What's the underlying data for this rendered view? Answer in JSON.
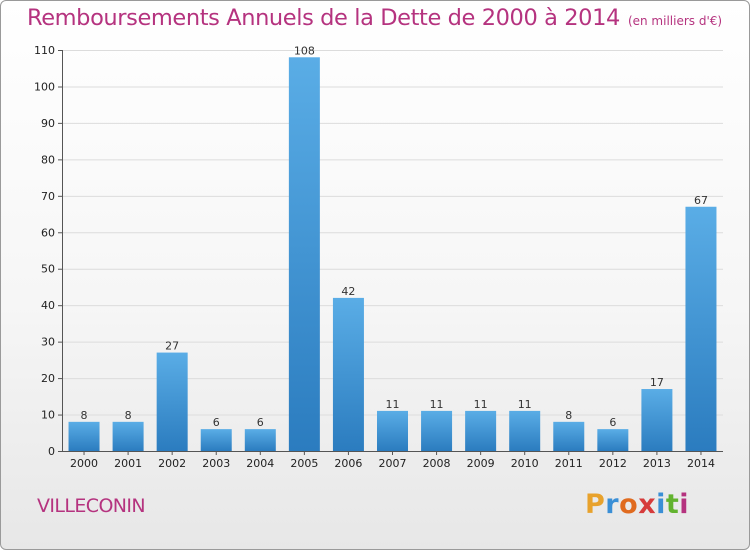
{
  "title": "Remboursements Annuels de la Dette de 2000 à 2014",
  "unit": "(en milliers d'€)",
  "commune": "VILLECONIN",
  "logo": {
    "text": "Proxiti",
    "colors": [
      "#e8a22c",
      "#3a8fd6",
      "#e06b1f",
      "#d63b3b",
      "#3a8fd6",
      "#62b32f",
      "#b5337f"
    ]
  },
  "colors": {
    "accent": "#b5337f",
    "bar_light": "#5aade6",
    "bar_dark": "#2b7cbf"
  },
  "chart_data": {
    "type": "bar",
    "categories": [
      "2000",
      "2001",
      "2002",
      "2003",
      "2004",
      "2005",
      "2006",
      "2007",
      "2008",
      "2009",
      "2010",
      "2011",
      "2012",
      "2013",
      "2014"
    ],
    "values": [
      8,
      8,
      27,
      6,
      6,
      108,
      42,
      11,
      11,
      11,
      11,
      8,
      6,
      17,
      67
    ],
    "title": "Remboursements Annuels de la Dette de 2000 à 2014",
    "subtitle": "(en milliers d'€)",
    "xlabel": "",
    "ylabel": "",
    "ylim": [
      0,
      110
    ],
    "yticks": [
      0,
      10,
      20,
      30,
      40,
      50,
      60,
      70,
      80,
      90,
      100,
      110
    ],
    "grid": "horizontal",
    "legend": "none"
  }
}
